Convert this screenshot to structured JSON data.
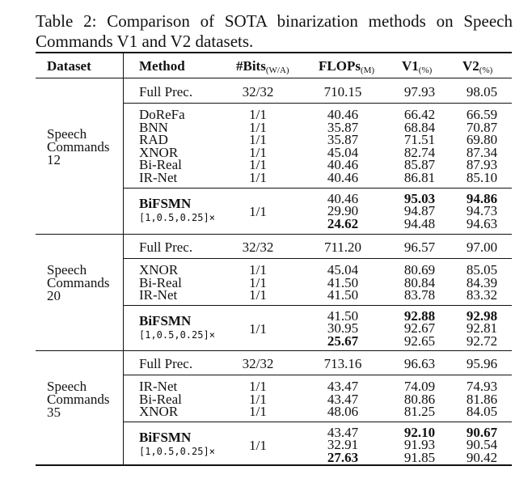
{
  "caption": "Table 2: Comparison of SOTA binarization methods on Speech Commands V1 and V2 datasets.",
  "header": {
    "dataset": "Dataset",
    "method": "Method",
    "bits": "#Bits",
    "bits_sub": "(W/A)",
    "flops": "FLOPs",
    "flops_sub": "(M)",
    "v1": "V1",
    "v1_sub": "(%)",
    "v2": "V2",
    "v2_sub": "(%)"
  },
  "sections": [
    {
      "dataset": [
        "Speech",
        "Commands",
        "12"
      ],
      "full": {
        "method": "Full Prec.",
        "bits": "32/32",
        "flops": "710.15",
        "v1": "97.93",
        "v2": "98.05"
      },
      "methods": [
        {
          "method": "DoReFa",
          "bits": "1/1",
          "flops": "40.46",
          "v1": "66.42",
          "v2": "66.59"
        },
        {
          "method": "BNN",
          "bits": "1/1",
          "flops": "35.87",
          "v1": "68.84",
          "v2": "70.87"
        },
        {
          "method": "RAD",
          "bits": "1/1",
          "flops": "35.87",
          "v1": "71.51",
          "v2": "69.80"
        },
        {
          "method": "XNOR",
          "bits": "1/1",
          "flops": "45.04",
          "v1": "82.74",
          "v2": "87.34"
        },
        {
          "method": "Bi-Real",
          "bits": "1/1",
          "flops": "40.46",
          "v1": "85.87",
          "v2": "87.93"
        },
        {
          "method": "IR-Net",
          "bits": "1/1",
          "flops": "40.46",
          "v1": "86.81",
          "v2": "85.10"
        }
      ],
      "ours": {
        "method": "BiFSMN",
        "config": "[1,0.5,0.25]×",
        "bits": "1/1",
        "flops": [
          "40.46",
          "29.90",
          "24.62"
        ],
        "v1": [
          "95.03",
          "94.87",
          "94.48"
        ],
        "v2": [
          "94.86",
          "94.73",
          "94.63"
        ]
      }
    },
    {
      "dataset": [
        "Speech",
        "Commands",
        "20"
      ],
      "full": {
        "method": "Full Prec.",
        "bits": "32/32",
        "flops": "711.20",
        "v1": "96.57",
        "v2": "97.00"
      },
      "methods": [
        {
          "method": "XNOR",
          "bits": "1/1",
          "flops": "45.04",
          "v1": "80.69",
          "v2": "85.05"
        },
        {
          "method": "Bi-Real",
          "bits": "1/1",
          "flops": "41.50",
          "v1": "80.84",
          "v2": "84.39"
        },
        {
          "method": "IR-Net",
          "bits": "1/1",
          "flops": "41.50",
          "v1": "83.78",
          "v2": "83.32"
        }
      ],
      "ours": {
        "method": "BiFSMN",
        "config": "[1,0.5,0.25]×",
        "bits": "1/1",
        "flops": [
          "41.50",
          "30.95",
          "25.67"
        ],
        "v1": [
          "92.88",
          "92.67",
          "92.65"
        ],
        "v2": [
          "92.98",
          "92.81",
          "92.72"
        ]
      }
    },
    {
      "dataset": [
        "Speech",
        "Commands",
        "35"
      ],
      "full": {
        "method": "Full Prec.",
        "bits": "32/32",
        "flops": "713.16",
        "v1": "96.63",
        "v2": "95.96"
      },
      "methods": [
        {
          "method": "IR-Net",
          "bits": "1/1",
          "flops": "43.47",
          "v1": "74.09",
          "v2": "74.93"
        },
        {
          "method": "Bi-Real",
          "bits": "1/1",
          "flops": "43.47",
          "v1": "80.86",
          "v2": "81.86"
        },
        {
          "method": "XNOR",
          "bits": "1/1",
          "flops": "48.06",
          "v1": "81.25",
          "v2": "84.05"
        }
      ],
      "ours": {
        "method": "BiFSMN",
        "config": "[1,0.5,0.25]×",
        "bits": "1/1",
        "flops": [
          "43.47",
          "32.91",
          "27.63"
        ],
        "v1": [
          "92.10",
          "91.93",
          "91.85"
        ],
        "v2": [
          "90.67",
          "90.54",
          "90.42"
        ]
      }
    }
  ]
}
